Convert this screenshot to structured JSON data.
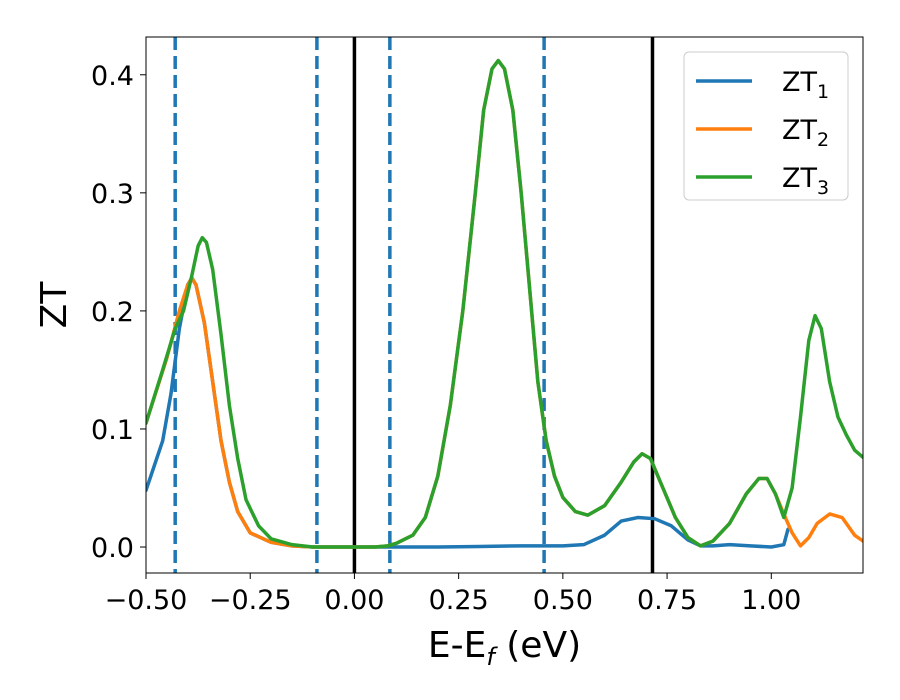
{
  "chart_data": {
    "type": "line",
    "xlabel": "E-E",
    "xlabel_sub": "f",
    "xlabel_unit": " (eV)",
    "ylabel": "ZT",
    "xlim": [
      -0.5,
      1.22
    ],
    "ylim": [
      -0.022,
      0.432
    ],
    "x_ticks": [
      -0.5,
      -0.25,
      0.0,
      0.25,
      0.5,
      0.75,
      1.0
    ],
    "x_tick_labels": [
      "−0.50",
      "−0.25",
      "0.00",
      "0.25",
      "0.50",
      "0.75",
      "1.00"
    ],
    "y_ticks": [
      0.0,
      0.1,
      0.2,
      0.3,
      0.4
    ],
    "y_tick_labels": [
      "0.0",
      "0.1",
      "0.2",
      "0.3",
      "0.4"
    ],
    "grid": false,
    "legend_position": "top-right",
    "vlines": [
      {
        "x": -0.43,
        "style": "dashed",
        "color": "#1f77b4"
      },
      {
        "x": -0.09,
        "style": "dashed",
        "color": "#1f77b4"
      },
      {
        "x": 0.0,
        "style": "solid",
        "color": "#000000"
      },
      {
        "x": 0.085,
        "style": "dashed",
        "color": "#1f77b4"
      },
      {
        "x": 0.455,
        "style": "dashed",
        "color": "#1f77b4"
      },
      {
        "x": 0.715,
        "style": "solid",
        "color": "#000000"
      }
    ],
    "series": [
      {
        "name": "ZT",
        "sub": "1",
        "color": "#1f77b4",
        "points": [
          [
            -0.5,
            0.048
          ],
          [
            -0.46,
            0.09
          ],
          [
            -0.44,
            0.13
          ],
          [
            -0.42,
            0.185
          ],
          [
            -0.4,
            0.222
          ],
          [
            -0.39,
            0.228
          ],
          [
            -0.38,
            0.222
          ],
          [
            -0.36,
            0.19
          ],
          [
            -0.34,
            0.14
          ],
          [
            -0.32,
            0.09
          ],
          [
            -0.3,
            0.055
          ],
          [
            -0.28,
            0.03
          ],
          [
            -0.25,
            0.012
          ],
          [
            -0.2,
            0.004
          ],
          [
            -0.15,
            0.001
          ],
          [
            -0.1,
            0.0
          ],
          [
            0.0,
            0.0
          ],
          [
            0.1,
            0.0
          ],
          [
            0.2,
            0.0
          ],
          [
            0.3,
            0.0005
          ],
          [
            0.4,
            0.001
          ],
          [
            0.5,
            0.001
          ],
          [
            0.55,
            0.002
          ],
          [
            0.6,
            0.01
          ],
          [
            0.64,
            0.022
          ],
          [
            0.68,
            0.025
          ],
          [
            0.72,
            0.024
          ],
          [
            0.76,
            0.018
          ],
          [
            0.8,
            0.006
          ],
          [
            0.83,
            0.001
          ],
          [
            0.86,
            0.001
          ],
          [
            0.9,
            0.002
          ],
          [
            0.95,
            0.001
          ],
          [
            1.0,
            0.0
          ],
          [
            1.03,
            0.002
          ],
          [
            1.04,
            0.015
          ]
        ]
      },
      {
        "name": "ZT",
        "sub": "2",
        "color": "#ff7f0e",
        "points": [
          [
            -0.5,
            0.105
          ],
          [
            -0.45,
            0.16
          ],
          [
            -0.42,
            0.2
          ],
          [
            -0.4,
            0.222
          ],
          [
            -0.39,
            0.228
          ],
          [
            -0.38,
            0.222
          ],
          [
            -0.36,
            0.19
          ],
          [
            -0.34,
            0.14
          ],
          [
            -0.32,
            0.09
          ],
          [
            -0.3,
            0.055
          ],
          [
            -0.28,
            0.03
          ],
          [
            -0.25,
            0.012
          ],
          [
            -0.2,
            0.004
          ],
          [
            -0.15,
            0.001
          ],
          [
            -0.1,
            0.0
          ],
          [
            0.0,
            0.0
          ],
          [
            0.05,
            0.0
          ],
          [
            0.08,
            0.001
          ],
          [
            0.1,
            0.003
          ],
          [
            0.14,
            0.01
          ],
          [
            0.17,
            0.025
          ],
          [
            0.2,
            0.06
          ],
          [
            0.23,
            0.12
          ],
          [
            0.26,
            0.2
          ],
          [
            0.29,
            0.3
          ],
          [
            0.31,
            0.37
          ],
          [
            0.33,
            0.405
          ],
          [
            0.345,
            0.412
          ],
          [
            0.36,
            0.405
          ],
          [
            0.38,
            0.37
          ],
          [
            0.4,
            0.3
          ],
          [
            0.42,
            0.22
          ],
          [
            0.44,
            0.14
          ],
          [
            0.46,
            0.09
          ],
          [
            0.48,
            0.06
          ],
          [
            0.5,
            0.042
          ],
          [
            0.53,
            0.03
          ],
          [
            0.56,
            0.027
          ],
          [
            0.6,
            0.035
          ],
          [
            0.64,
            0.055
          ],
          [
            0.67,
            0.072
          ],
          [
            0.69,
            0.079
          ],
          [
            0.71,
            0.075
          ],
          [
            0.74,
            0.05
          ],
          [
            0.77,
            0.025
          ],
          [
            0.8,
            0.008
          ],
          [
            0.83,
            0.001
          ],
          [
            0.86,
            0.005
          ],
          [
            0.9,
            0.02
          ],
          [
            0.94,
            0.045
          ],
          [
            0.97,
            0.058
          ],
          [
            0.99,
            0.058
          ],
          [
            1.01,
            0.045
          ],
          [
            1.03,
            0.028
          ],
          [
            1.05,
            0.012
          ],
          [
            1.07,
            0.001
          ],
          [
            1.09,
            0.008
          ],
          [
            1.11,
            0.02
          ],
          [
            1.14,
            0.028
          ],
          [
            1.17,
            0.025
          ],
          [
            1.2,
            0.01
          ],
          [
            1.22,
            0.005
          ]
        ]
      },
      {
        "name": "ZT",
        "sub": "3",
        "color": "#2ca02c",
        "points": [
          [
            -0.5,
            0.105
          ],
          [
            -0.46,
            0.15
          ],
          [
            -0.43,
            0.185
          ],
          [
            -0.41,
            0.2
          ],
          [
            -0.39,
            0.23
          ],
          [
            -0.375,
            0.255
          ],
          [
            -0.365,
            0.262
          ],
          [
            -0.355,
            0.258
          ],
          [
            -0.34,
            0.235
          ],
          [
            -0.32,
            0.18
          ],
          [
            -0.3,
            0.12
          ],
          [
            -0.28,
            0.075
          ],
          [
            -0.26,
            0.04
          ],
          [
            -0.23,
            0.018
          ],
          [
            -0.2,
            0.007
          ],
          [
            -0.15,
            0.002
          ],
          [
            -0.1,
            0.0
          ],
          [
            0.0,
            0.0
          ],
          [
            0.05,
            0.0
          ],
          [
            0.08,
            0.001
          ],
          [
            0.1,
            0.003
          ],
          [
            0.14,
            0.01
          ],
          [
            0.17,
            0.025
          ],
          [
            0.2,
            0.06
          ],
          [
            0.23,
            0.12
          ],
          [
            0.26,
            0.2
          ],
          [
            0.29,
            0.3
          ],
          [
            0.31,
            0.37
          ],
          [
            0.33,
            0.405
          ],
          [
            0.345,
            0.412
          ],
          [
            0.36,
            0.405
          ],
          [
            0.38,
            0.37
          ],
          [
            0.4,
            0.3
          ],
          [
            0.42,
            0.22
          ],
          [
            0.44,
            0.14
          ],
          [
            0.46,
            0.09
          ],
          [
            0.48,
            0.06
          ],
          [
            0.5,
            0.042
          ],
          [
            0.53,
            0.03
          ],
          [
            0.56,
            0.027
          ],
          [
            0.6,
            0.035
          ],
          [
            0.64,
            0.055
          ],
          [
            0.67,
            0.072
          ],
          [
            0.69,
            0.079
          ],
          [
            0.71,
            0.075
          ],
          [
            0.74,
            0.05
          ],
          [
            0.77,
            0.025
          ],
          [
            0.8,
            0.008
          ],
          [
            0.83,
            0.001
          ],
          [
            0.86,
            0.005
          ],
          [
            0.9,
            0.02
          ],
          [
            0.94,
            0.045
          ],
          [
            0.97,
            0.058
          ],
          [
            0.99,
            0.058
          ],
          [
            1.01,
            0.045
          ],
          [
            1.03,
            0.025
          ],
          [
            1.05,
            0.05
          ],
          [
            1.07,
            0.11
          ],
          [
            1.09,
            0.175
          ],
          [
            1.105,
            0.196
          ],
          [
            1.12,
            0.185
          ],
          [
            1.14,
            0.14
          ],
          [
            1.16,
            0.11
          ],
          [
            1.18,
            0.095
          ],
          [
            1.2,
            0.082
          ],
          [
            1.22,
            0.076
          ]
        ]
      }
    ]
  }
}
